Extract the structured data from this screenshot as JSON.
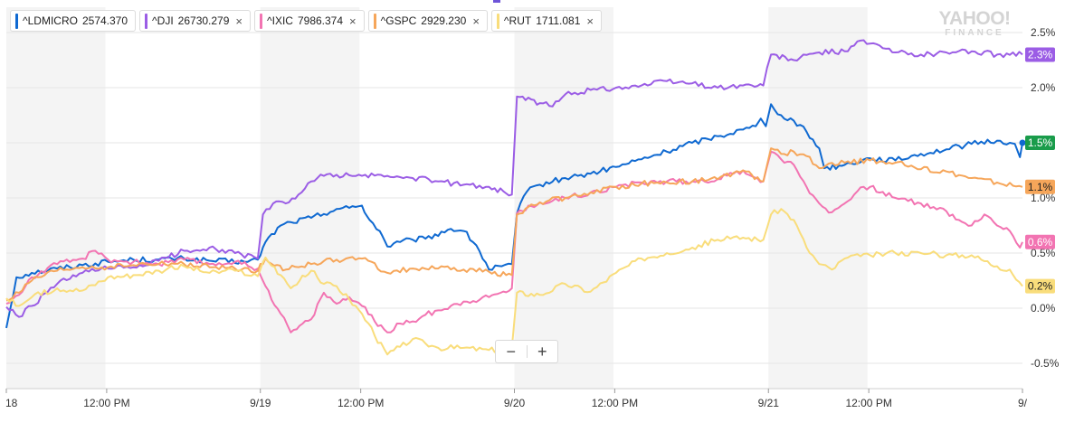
{
  "legend": [
    {
      "symbol": "^LDMICRO",
      "value": "2574.370",
      "color": "#0f69d1",
      "closable": false
    },
    {
      "symbol": "^DJI",
      "value": "26730.279",
      "color": "#9b5de5",
      "closable": true
    },
    {
      "symbol": "^IXIC",
      "value": "7986.374",
      "color": "#f274b2",
      "closable": true
    },
    {
      "symbol": "^GSPC",
      "value": "2929.230",
      "color": "#f6a65a",
      "closable": true
    },
    {
      "symbol": "^RUT",
      "value": "1711.081",
      "color": "#f9dd7b",
      "closable": true
    }
  ],
  "close_glyph": "×",
  "logo": {
    "line1": "YAHOO!",
    "line2": "FINANCE"
  },
  "zoom": {
    "minus": "−",
    "plus": "+"
  },
  "chart_data": {
    "type": "line",
    "y_unit": "%",
    "ylim": [
      -0.73,
      2.73
    ],
    "y_ticks": [
      "2.5%",
      "2.0%",
      "1.5%",
      "1.0%",
      "0.5%",
      "0.0%",
      "-0.5%"
    ],
    "y_tick_values": [
      2.5,
      2.0,
      1.5,
      1.0,
      0.5,
      0.0,
      -0.5
    ],
    "x_tick_labels": [
      "18",
      "12:00 PM",
      "9/19",
      "12:00 PM",
      "9/20",
      "12:00 PM",
      "9/21",
      "12:00 PM",
      "9/"
    ],
    "x_tick_values": [
      0,
      0.395,
      1,
      1.395,
      2,
      2.395,
      3,
      3.395,
      4
    ],
    "xlim": [
      0,
      4
    ],
    "shaded_sessions": [
      [
        0,
        0.39
      ],
      [
        1,
        1.39
      ],
      [
        2,
        2.39
      ],
      [
        3,
        3.39
      ]
    ],
    "grid": true,
    "legend_position": "top-left",
    "series": [
      {
        "name": "^LDMICRO",
        "color": "#0f69d1",
        "end_label": "1.5%",
        "end_label_bg": "#1a9c4b",
        "points": [
          [
            0,
            -0.18
          ],
          [
            0.04,
            0.28
          ],
          [
            0.1,
            0.32
          ],
          [
            0.2,
            0.36
          ],
          [
            0.3,
            0.39
          ],
          [
            0.4,
            0.42
          ],
          [
            0.5,
            0.44
          ],
          [
            0.6,
            0.44
          ],
          [
            0.7,
            0.45
          ],
          [
            0.8,
            0.43
          ],
          [
            0.95,
            0.42
          ],
          [
            0.99,
            0.44
          ],
          [
            1.02,
            0.6
          ],
          [
            1.08,
            0.75
          ],
          [
            1.12,
            0.78
          ],
          [
            1.2,
            0.82
          ],
          [
            1.3,
            0.9
          ],
          [
            1.35,
            0.91
          ],
          [
            1.4,
            0.93
          ],
          [
            1.43,
            0.8
          ],
          [
            1.47,
            0.7
          ],
          [
            1.5,
            0.56
          ],
          [
            1.55,
            0.6
          ],
          [
            1.6,
            0.62
          ],
          [
            1.65,
            0.63
          ],
          [
            1.75,
            0.72
          ],
          [
            1.8,
            0.7
          ],
          [
            1.85,
            0.57
          ],
          [
            1.9,
            0.35
          ],
          [
            1.95,
            0.38
          ],
          [
            1.99,
            0.4
          ],
          [
            2.01,
            0.86
          ],
          [
            2.05,
            1.06
          ],
          [
            2.1,
            1.12
          ],
          [
            2.2,
            1.18
          ],
          [
            2.25,
            1.2
          ],
          [
            2.3,
            1.22
          ],
          [
            2.4,
            1.28
          ],
          [
            2.5,
            1.35
          ],
          [
            2.6,
            1.42
          ],
          [
            2.7,
            1.5
          ],
          [
            2.8,
            1.56
          ],
          [
            2.9,
            1.62
          ],
          [
            2.95,
            1.65
          ],
          [
            2.97,
            1.72
          ],
          [
            2.99,
            1.65
          ],
          [
            3.01,
            1.85
          ],
          [
            3.05,
            1.75
          ],
          [
            3.1,
            1.7
          ],
          [
            3.15,
            1.6
          ],
          [
            3.2,
            1.45
          ],
          [
            3.22,
            1.27
          ],
          [
            3.3,
            1.3
          ],
          [
            3.4,
            1.36
          ],
          [
            3.5,
            1.34
          ],
          [
            3.6,
            1.4
          ],
          [
            3.7,
            1.44
          ],
          [
            3.8,
            1.49
          ],
          [
            3.9,
            1.52
          ],
          [
            3.95,
            1.5
          ],
          [
            3.97,
            1.49
          ],
          [
            3.99,
            1.37
          ],
          [
            4.0,
            1.5
          ]
        ]
      },
      {
        "name": "^DJI",
        "color": "#9b5de5",
        "end_label": "2.3%",
        "end_label_bg": "#9b5de5",
        "points": [
          [
            0,
            0.01
          ],
          [
            0.05,
            -0.08
          ],
          [
            0.1,
            0.02
          ],
          [
            0.2,
            0.22
          ],
          [
            0.3,
            0.32
          ],
          [
            0.4,
            0.36
          ],
          [
            0.5,
            0.37
          ],
          [
            0.6,
            0.43
          ],
          [
            0.7,
            0.52
          ],
          [
            0.8,
            0.55
          ],
          [
            0.9,
            0.5
          ],
          [
            0.99,
            0.45
          ],
          [
            1.01,
            0.85
          ],
          [
            1.05,
            0.95
          ],
          [
            1.1,
            0.95
          ],
          [
            1.15,
            1.03
          ],
          [
            1.2,
            1.15
          ],
          [
            1.25,
            1.2
          ],
          [
            1.3,
            1.21
          ],
          [
            1.4,
            1.2
          ],
          [
            1.5,
            1.2
          ],
          [
            1.6,
            1.18
          ],
          [
            1.7,
            1.15
          ],
          [
            1.8,
            1.12
          ],
          [
            1.9,
            1.1
          ],
          [
            1.99,
            1.03
          ],
          [
            2.01,
            1.92
          ],
          [
            2.1,
            1.86
          ],
          [
            2.15,
            1.83
          ],
          [
            2.2,
            1.94
          ],
          [
            2.3,
            1.98
          ],
          [
            2.4,
            2.0
          ],
          [
            2.5,
            2.02
          ],
          [
            2.6,
            2.06
          ],
          [
            2.7,
            2.04
          ],
          [
            2.8,
            2.0
          ],
          [
            2.9,
            2.02
          ],
          [
            2.98,
            2.02
          ],
          [
            3.01,
            2.3
          ],
          [
            3.1,
            2.25
          ],
          [
            3.2,
            2.32
          ],
          [
            3.3,
            2.33
          ],
          [
            3.35,
            2.42
          ],
          [
            3.4,
            2.4
          ],
          [
            3.5,
            2.32
          ],
          [
            3.6,
            2.3
          ],
          [
            3.7,
            2.32
          ],
          [
            3.8,
            2.33
          ],
          [
            3.9,
            2.3
          ],
          [
            4.0,
            2.3
          ]
        ]
      },
      {
        "name": "^IXIC",
        "color": "#f274b2",
        "end_label": "0.6%",
        "end_label_bg": "#f274b2",
        "points": [
          [
            0,
            0.04
          ],
          [
            0.05,
            0.12
          ],
          [
            0.1,
            0.28
          ],
          [
            0.2,
            0.4
          ],
          [
            0.3,
            0.45
          ],
          [
            0.35,
            0.52
          ],
          [
            0.4,
            0.44
          ],
          [
            0.5,
            0.42
          ],
          [
            0.6,
            0.4
          ],
          [
            0.7,
            0.44
          ],
          [
            0.8,
            0.4
          ],
          [
            0.9,
            0.42
          ],
          [
            0.99,
            0.36
          ],
          [
            1.02,
            0.2
          ],
          [
            1.08,
            -0.05
          ],
          [
            1.12,
            -0.22
          ],
          [
            1.2,
            -0.1
          ],
          [
            1.25,
            0.14
          ],
          [
            1.3,
            0.04
          ],
          [
            1.35,
            0.1
          ],
          [
            1.4,
            0.02
          ],
          [
            1.45,
            -0.12
          ],
          [
            1.5,
            -0.22
          ],
          [
            1.55,
            -0.14
          ],
          [
            1.6,
            -0.12
          ],
          [
            1.65,
            -0.06
          ],
          [
            1.7,
            -0.02
          ],
          [
            1.8,
            0.06
          ],
          [
            1.9,
            0.1
          ],
          [
            1.99,
            0.18
          ],
          [
            2.01,
            0.86
          ],
          [
            2.1,
            0.96
          ],
          [
            2.2,
            1.0
          ],
          [
            2.3,
            1.05
          ],
          [
            2.4,
            1.1
          ],
          [
            2.5,
            1.14
          ],
          [
            2.6,
            1.15
          ],
          [
            2.7,
            1.15
          ],
          [
            2.8,
            1.17
          ],
          [
            2.9,
            1.25
          ],
          [
            2.98,
            1.15
          ],
          [
            3.01,
            1.42
          ],
          [
            3.05,
            1.35
          ],
          [
            3.1,
            1.3
          ],
          [
            3.15,
            1.1
          ],
          [
            3.2,
            0.95
          ],
          [
            3.25,
            0.87
          ],
          [
            3.3,
            0.95
          ],
          [
            3.35,
            1.06
          ],
          [
            3.4,
            1.1
          ],
          [
            3.5,
            1.0
          ],
          [
            3.6,
            0.95
          ],
          [
            3.7,
            0.88
          ],
          [
            3.75,
            0.8
          ],
          [
            3.8,
            0.75
          ],
          [
            3.85,
            0.85
          ],
          [
            3.9,
            0.75
          ],
          [
            3.95,
            0.7
          ],
          [
            3.99,
            0.55
          ],
          [
            4.0,
            0.6
          ]
        ]
      },
      {
        "name": "^GSPC",
        "color": "#f6a65a",
        "end_label": "1.1%",
        "end_label_bg": "#f6a65a",
        "points": [
          [
            0,
            0.07
          ],
          [
            0.05,
            0.14
          ],
          [
            0.1,
            0.25
          ],
          [
            0.2,
            0.34
          ],
          [
            0.3,
            0.37
          ],
          [
            0.4,
            0.37
          ],
          [
            0.5,
            0.39
          ],
          [
            0.6,
            0.4
          ],
          [
            0.7,
            0.4
          ],
          [
            0.8,
            0.37
          ],
          [
            0.9,
            0.36
          ],
          [
            0.99,
            0.34
          ],
          [
            1.02,
            0.45
          ],
          [
            1.1,
            0.35
          ],
          [
            1.2,
            0.4
          ],
          [
            1.3,
            0.44
          ],
          [
            1.4,
            0.45
          ],
          [
            1.5,
            0.32
          ],
          [
            1.6,
            0.36
          ],
          [
            1.7,
            0.36
          ],
          [
            1.8,
            0.35
          ],
          [
            1.9,
            0.33
          ],
          [
            1.99,
            0.3
          ],
          [
            2.01,
            0.85
          ],
          [
            2.1,
            0.96
          ],
          [
            2.2,
            1.0
          ],
          [
            2.3,
            1.05
          ],
          [
            2.4,
            1.1
          ],
          [
            2.5,
            1.13
          ],
          [
            2.6,
            1.14
          ],
          [
            2.7,
            1.15
          ],
          [
            2.8,
            1.17
          ],
          [
            2.9,
            1.25
          ],
          [
            2.98,
            1.15
          ],
          [
            3.01,
            1.45
          ],
          [
            3.05,
            1.4
          ],
          [
            3.1,
            1.42
          ],
          [
            3.15,
            1.38
          ],
          [
            3.2,
            1.27
          ],
          [
            3.3,
            1.32
          ],
          [
            3.4,
            1.34
          ],
          [
            3.5,
            1.32
          ],
          [
            3.6,
            1.26
          ],
          [
            3.7,
            1.24
          ],
          [
            3.8,
            1.18
          ],
          [
            3.9,
            1.14
          ],
          [
            4.0,
            1.1
          ]
        ]
      },
      {
        "name": "^RUT",
        "color": "#f9dd7b",
        "end_label": "0.2%",
        "end_label_bg": "#f9dd7b",
        "points": [
          [
            0,
            0.09
          ],
          [
            0.05,
            0.02
          ],
          [
            0.1,
            0.1
          ],
          [
            0.2,
            0.18
          ],
          [
            0.3,
            0.16
          ],
          [
            0.4,
            0.28
          ],
          [
            0.5,
            0.3
          ],
          [
            0.6,
            0.34
          ],
          [
            0.7,
            0.38
          ],
          [
            0.8,
            0.32
          ],
          [
            0.9,
            0.34
          ],
          [
            0.99,
            0.29
          ],
          [
            1.02,
            0.46
          ],
          [
            1.08,
            0.3
          ],
          [
            1.12,
            0.18
          ],
          [
            1.2,
            0.34
          ],
          [
            1.25,
            0.22
          ],
          [
            1.3,
            0.2
          ],
          [
            1.35,
            0.08
          ],
          [
            1.4,
            -0.05
          ],
          [
            1.45,
            -0.25
          ],
          [
            1.5,
            -0.42
          ],
          [
            1.55,
            -0.35
          ],
          [
            1.6,
            -0.28
          ],
          [
            1.65,
            -0.32
          ],
          [
            1.7,
            -0.36
          ],
          [
            1.8,
            -0.36
          ],
          [
            1.9,
            -0.38
          ],
          [
            1.99,
            -0.36
          ],
          [
            2.01,
            0.14
          ],
          [
            2.1,
            0.12
          ],
          [
            2.2,
            0.22
          ],
          [
            2.3,
            0.15
          ],
          [
            2.4,
            0.32
          ],
          [
            2.5,
            0.45
          ],
          [
            2.6,
            0.5
          ],
          [
            2.7,
            0.55
          ],
          [
            2.8,
            0.62
          ],
          [
            2.9,
            0.64
          ],
          [
            2.98,
            0.62
          ],
          [
            3.01,
            0.85
          ],
          [
            3.05,
            0.9
          ],
          [
            3.1,
            0.8
          ],
          [
            3.15,
            0.55
          ],
          [
            3.2,
            0.4
          ],
          [
            3.25,
            0.35
          ],
          [
            3.3,
            0.45
          ],
          [
            3.4,
            0.48
          ],
          [
            3.5,
            0.5
          ],
          [
            3.6,
            0.5
          ],
          [
            3.7,
            0.48
          ],
          [
            3.8,
            0.48
          ],
          [
            3.9,
            0.38
          ],
          [
            3.95,
            0.35
          ],
          [
            4.0,
            0.2
          ]
        ]
      }
    ]
  }
}
